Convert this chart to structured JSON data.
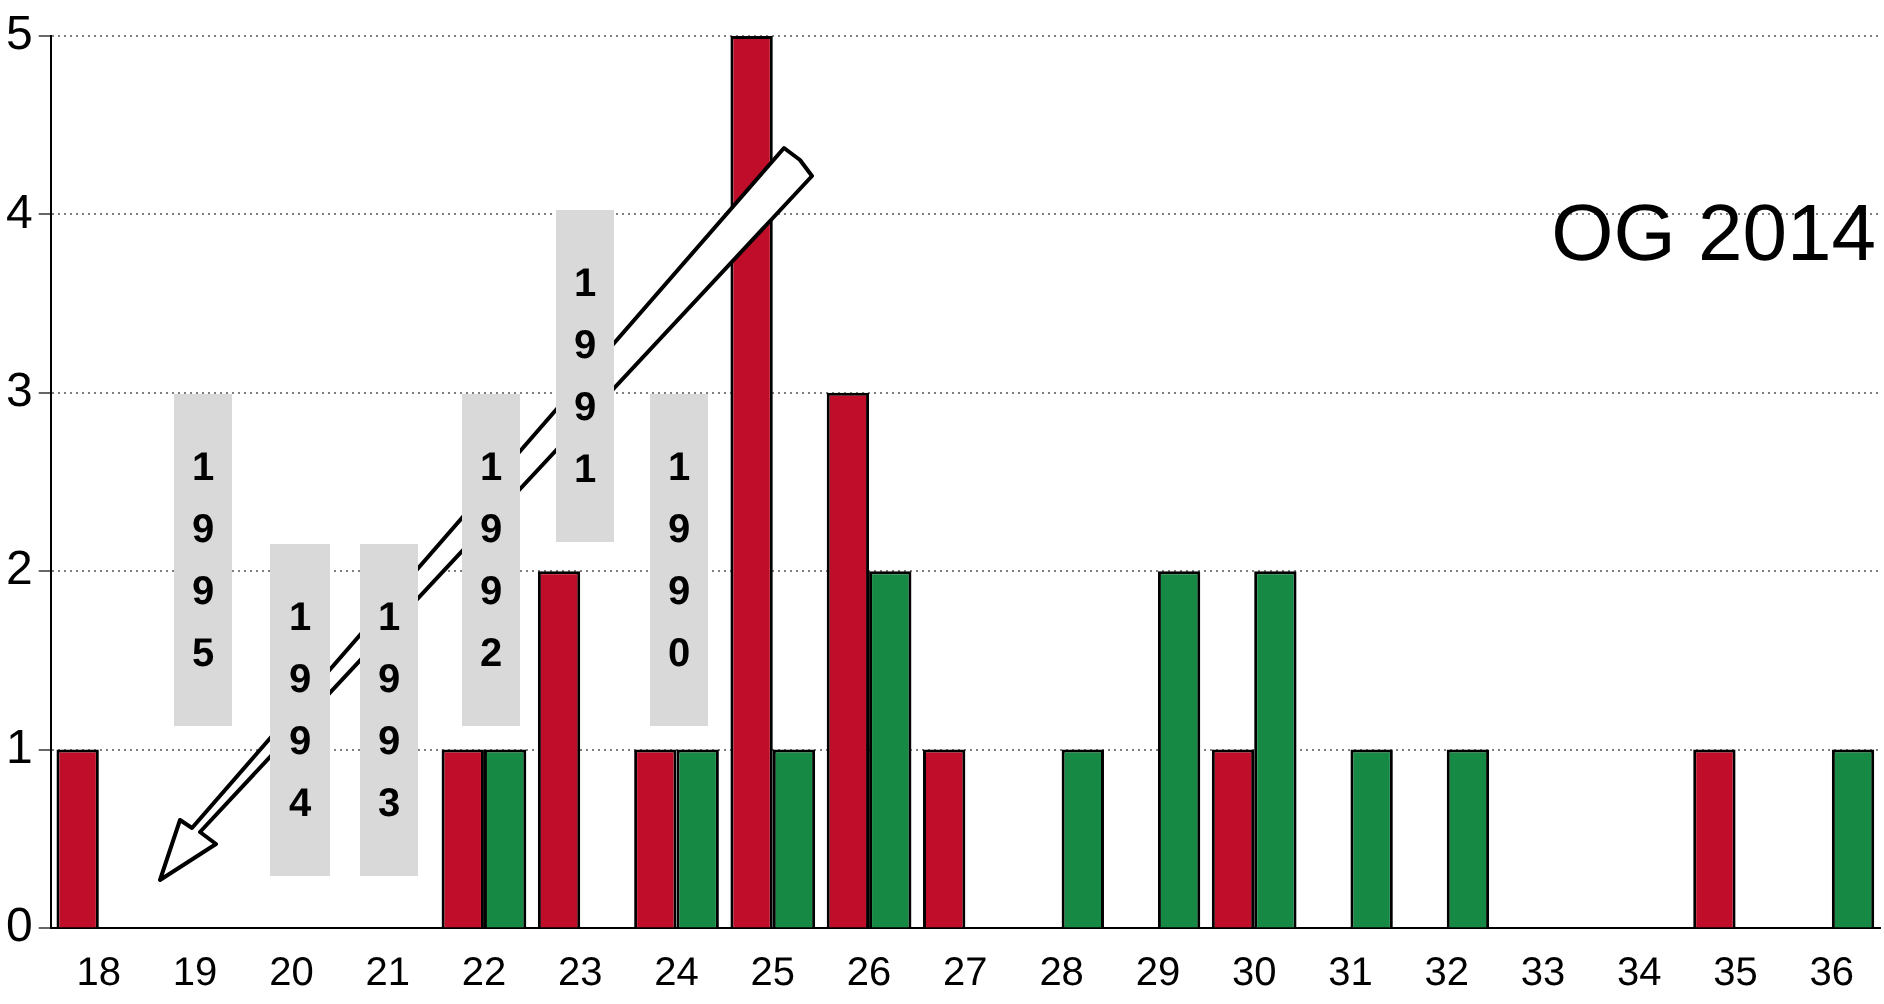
{
  "chart_data": {
    "type": "bar",
    "categories": [
      "18",
      "19",
      "20",
      "21",
      "22",
      "23",
      "24",
      "25",
      "26",
      "27",
      "28",
      "29",
      "30",
      "31",
      "32",
      "33",
      "34",
      "35",
      "36"
    ],
    "series": [
      {
        "color": "#c00d2a",
        "values": [
          1,
          0,
          0,
          0,
          1,
          2,
          1,
          5,
          3,
          1,
          0,
          0,
          1,
          0,
          0,
          0,
          0,
          1,
          0
        ]
      },
      {
        "color": "#168a45",
        "values": [
          0,
          0,
          0,
          0,
          1,
          0,
          1,
          1,
          2,
          0,
          1,
          2,
          2,
          1,
          1,
          0,
          0,
          0,
          1
        ]
      }
    ],
    "ylim": [
      0,
      5
    ],
    "yticks": [
      0,
      1,
      2,
      3,
      4,
      5
    ],
    "grid": "y",
    "legend": false,
    "annotations": [
      "1995",
      "1994",
      "1993",
      "1992",
      "1991",
      "1990",
      "OG 2014"
    ]
  }
}
